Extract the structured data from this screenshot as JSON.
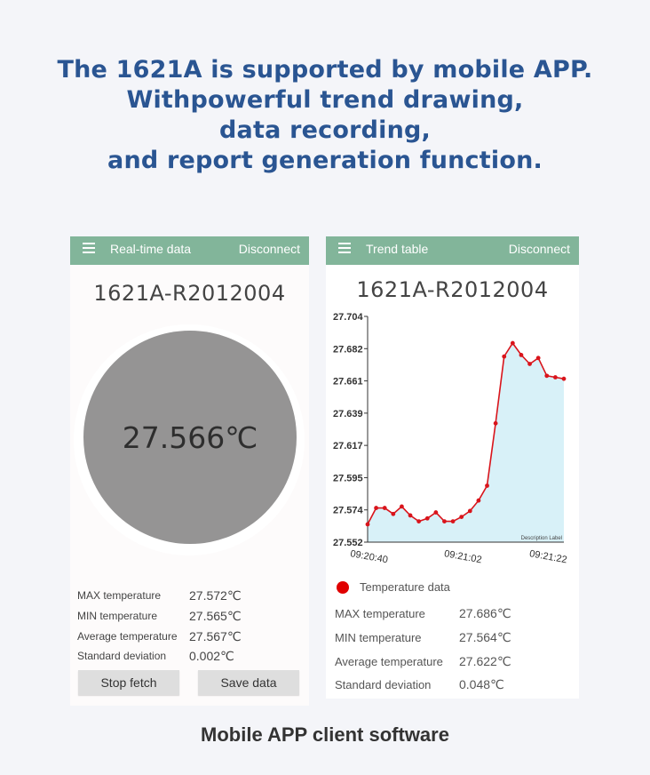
{
  "headline": {
    "line1": "The 1621A is supported by mobile APP.",
    "line2": "Withpowerful trend drawing,",
    "line3": "data recording,",
    "line4": "and report generation function."
  },
  "left_screen": {
    "appbar": {
      "title": "Real-time data",
      "action": "Disconnect",
      "menu_icon": "hamburger-menu-icon"
    },
    "device_id": "1621A-R2012004",
    "reading": "27.566℃",
    "stats": [
      {
        "label": "MAX temperature",
        "value": "27.572℃"
      },
      {
        "label": "MIN temperature",
        "value": "27.565℃"
      },
      {
        "label": "Average temperature",
        "value": "27.567℃"
      },
      {
        "label": "Standard deviation",
        "value": "0.002℃"
      }
    ],
    "buttons": {
      "stop": "Stop fetch",
      "save": "Save data"
    }
  },
  "right_screen": {
    "appbar": {
      "title": "Trend table",
      "action": "Disconnect",
      "menu_icon": "hamburger-menu-icon"
    },
    "device_id": "1621A-R2012004",
    "legend": "Temperature data",
    "stats": [
      {
        "label": "MAX temperature",
        "value": "27.686℃"
      },
      {
        "label": "MIN temperature",
        "value": "27.564℃"
      },
      {
        "label": "Average temperature",
        "value": "27.622℃"
      },
      {
        "label": "Standard deviation",
        "value": "0.048℃"
      }
    ]
  },
  "chart_data": {
    "type": "area",
    "title": "",
    "xlabel": "",
    "ylabel": "",
    "description_label": "Description Label",
    "y_ticks": [
      "27.704",
      "27.682",
      "27.661",
      "27.639",
      "27.617",
      "27.595",
      "27.574",
      "27.552"
    ],
    "x_ticks": [
      "09:20:40",
      "09:21:02",
      "09:21:22"
    ],
    "ylim": [
      27.552,
      27.704
    ],
    "grid": false,
    "colors": {
      "line": "#d9141b",
      "fill": "#d8f1f8",
      "axis": "#333333"
    },
    "series": [
      {
        "name": "Temperature data",
        "values": [
          27.564,
          27.575,
          27.575,
          27.571,
          27.576,
          27.57,
          27.566,
          27.568,
          27.572,
          27.566,
          27.566,
          27.569,
          27.573,
          27.58,
          27.59,
          27.632,
          27.677,
          27.686,
          27.678,
          27.672,
          27.676,
          27.664,
          27.663,
          27.662
        ]
      }
    ]
  },
  "caption": "Mobile APP client software"
}
